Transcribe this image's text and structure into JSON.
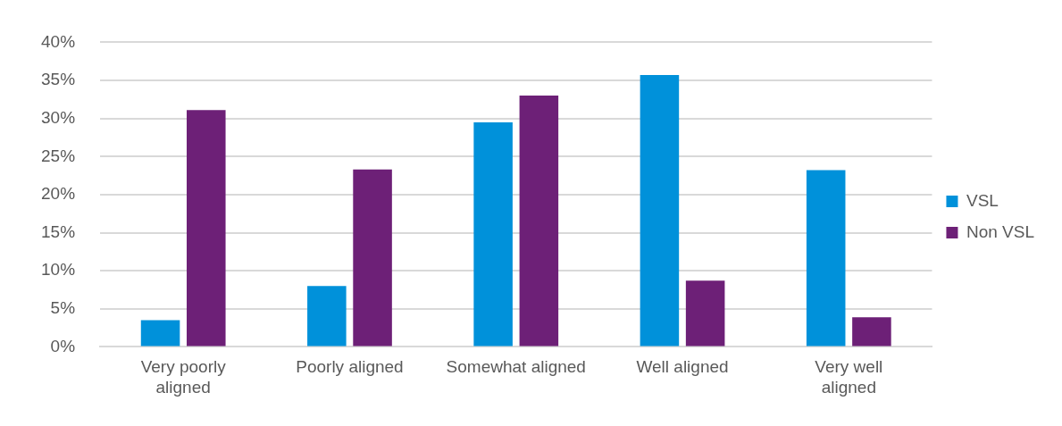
{
  "chart_data": {
    "type": "bar",
    "categories": [
      "Very poorly aligned",
      "Poorly aligned",
      "Somewhat aligned",
      "Well aligned",
      "Very well aligned"
    ],
    "series": [
      {
        "name": "VSL",
        "color": "#0091da",
        "values": [
          3.5,
          8.0,
          29.5,
          35.7,
          23.2
        ]
      },
      {
        "name": "Non VSL",
        "color": "#6d2077",
        "values": [
          31.1,
          23.3,
          33.0,
          8.7,
          3.9
        ]
      }
    ],
    "ylim": [
      0,
      40
    ],
    "yticks": [
      {
        "value": 0,
        "label": "0%"
      },
      {
        "value": 5,
        "label": "5%"
      },
      {
        "value": 10,
        "label": "10%"
      },
      {
        "value": 15,
        "label": "15%"
      },
      {
        "value": 20,
        "label": "20%"
      },
      {
        "value": 25,
        "label": "25%"
      },
      {
        "value": 30,
        "label": "30%"
      },
      {
        "value": 35,
        "label": "35%"
      },
      {
        "value": 40,
        "label": "40%"
      }
    ],
    "grid": "y",
    "legend": "right"
  }
}
